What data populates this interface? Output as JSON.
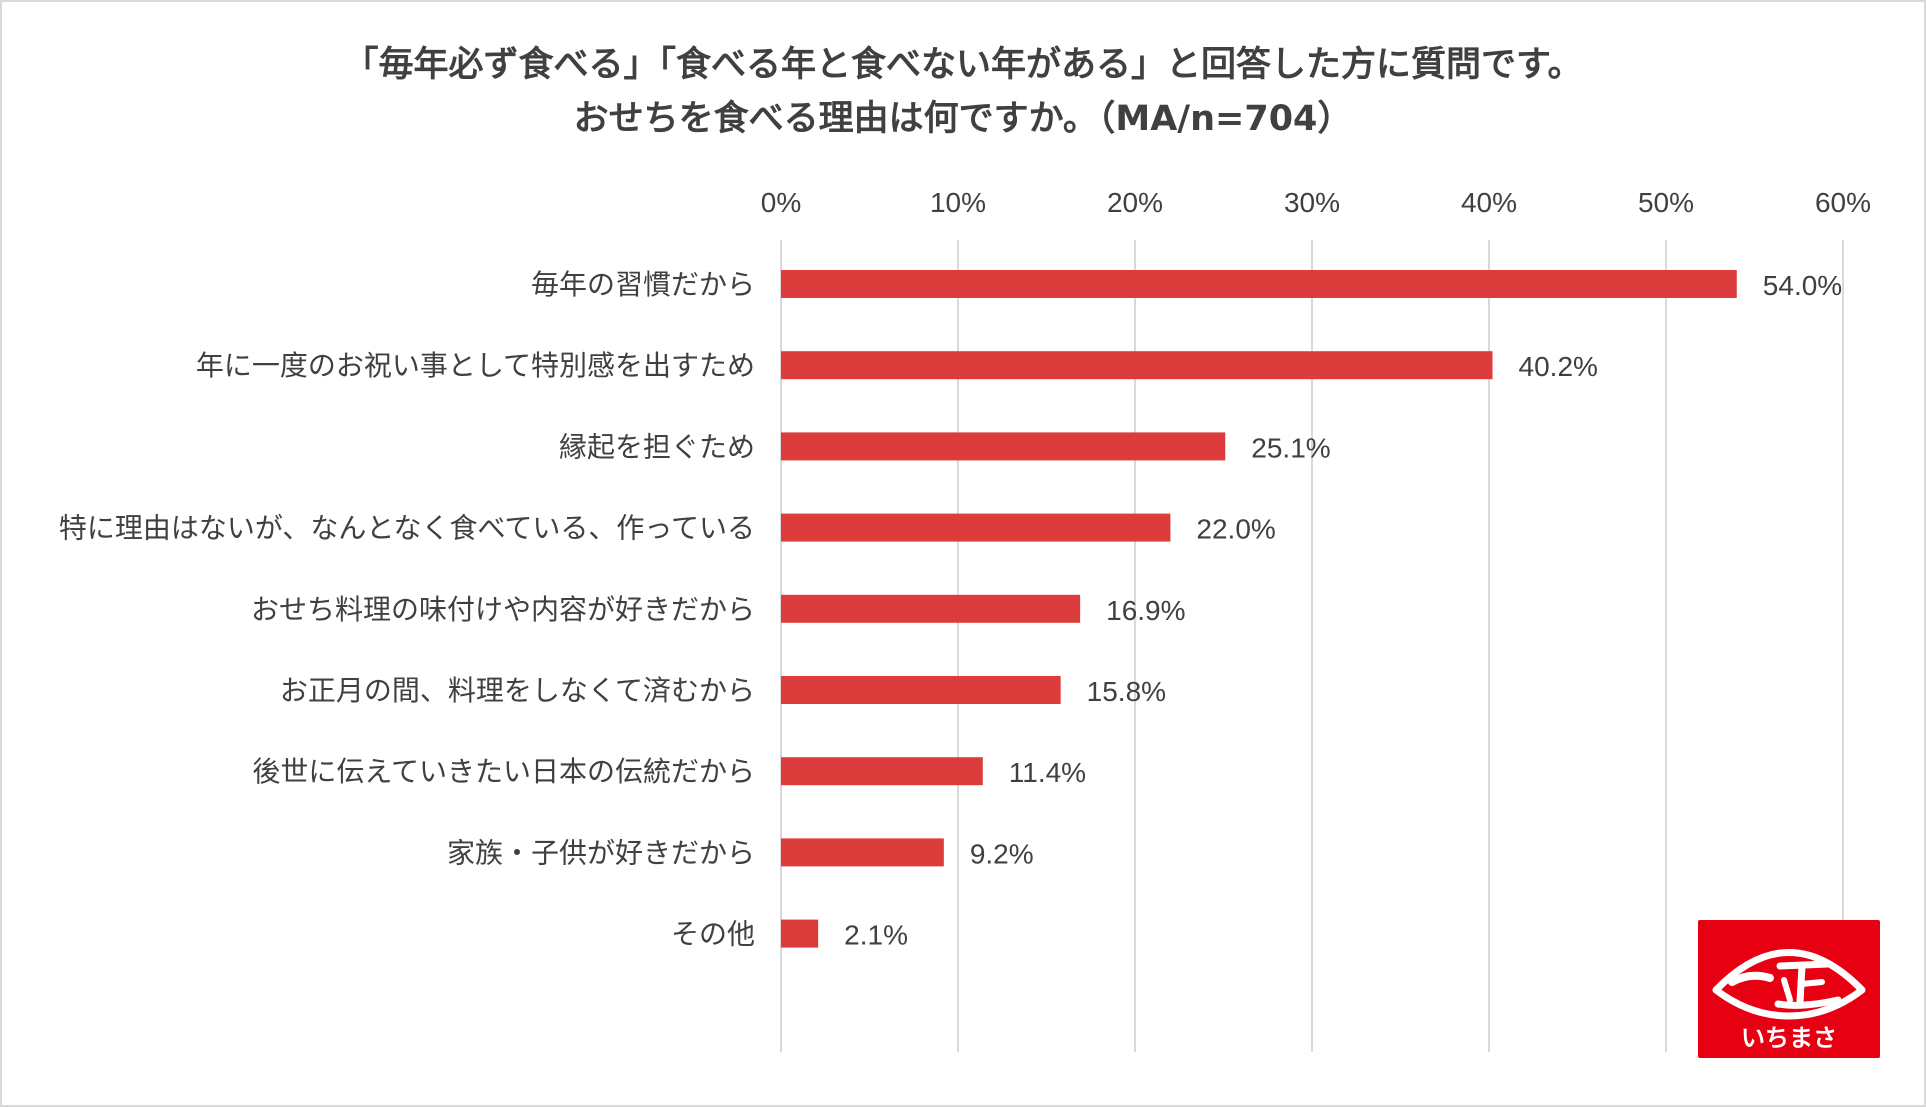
{
  "chart_data": {
    "type": "bar",
    "orientation": "horizontal",
    "title_lines": [
      "「毎年必ず食べる」「食べる年と食べない年がある」と回答した方に質問です。",
      "おせちを食べる理由は何ですか。（MA/n=704）"
    ],
    "categories": [
      "毎年の習慣だから",
      "年に一度のお祝い事として特別感を出すため",
      "縁起を担ぐため",
      "特に理由はないが、なんとなく食べている、作っている",
      "おせち料理の味付けや内容が好きだから",
      "お正月の間、料理をしなくて済むから",
      "後世に伝えていきたい日本の伝統だから",
      "家族・子供が好きだから",
      "その他"
    ],
    "values": [
      54.0,
      40.2,
      25.1,
      22.0,
      16.9,
      15.8,
      11.4,
      9.2,
      2.1
    ],
    "value_labels": [
      "54.0%",
      "40.2%",
      "25.1%",
      "22.0%",
      "16.9%",
      "15.8%",
      "11.4%",
      "9.2%",
      "2.1%"
    ],
    "x_ticks": [
      0,
      10,
      20,
      30,
      40,
      50,
      60
    ],
    "x_tick_labels": [
      "0%",
      "10%",
      "20%",
      "30%",
      "40%",
      "50%",
      "60%"
    ],
    "xlim": [
      0,
      60
    ],
    "x_axis_position": "top",
    "grid": true,
    "legend": "none",
    "bar_color": "#dc3c3c",
    "grid_color": "#d9d9d9",
    "text_color": "#404040"
  },
  "logo": {
    "brand_text": "いちまさ",
    "background_color": "#e60012"
  }
}
